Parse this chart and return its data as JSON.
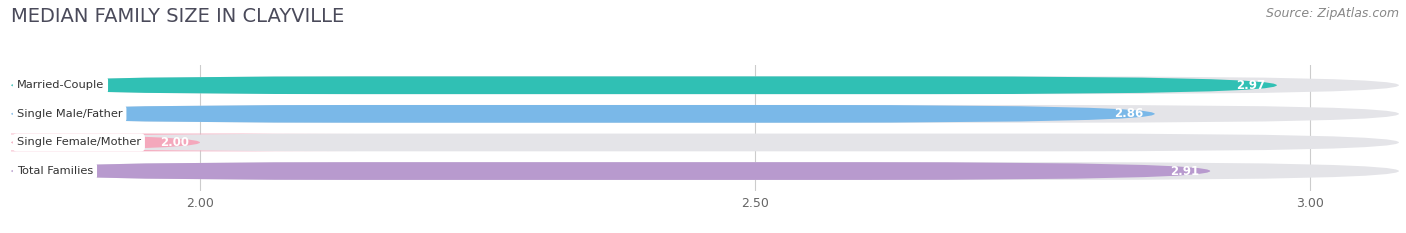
{
  "title": "MEDIAN FAMILY SIZE IN CLAYVILLE",
  "source": "Source: ZipAtlas.com",
  "categories": [
    "Married-Couple",
    "Single Male/Father",
    "Single Female/Mother",
    "Total Families"
  ],
  "values": [
    2.97,
    2.86,
    2.0,
    2.91
  ],
  "bar_colors": [
    "#30c0b4",
    "#7ab8e8",
    "#f4a8bc",
    "#b89ace"
  ],
  "xlim_min": 1.83,
  "xlim_max": 3.08,
  "xticks": [
    2.0,
    2.5,
    3.0
  ],
  "background_color": "#ffffff",
  "bar_bg_color": "#e4e4e8",
  "title_fontsize": 14,
  "source_fontsize": 9,
  "bar_height": 0.62,
  "bar_spacing": 1.0,
  "figsize": [
    14.06,
    2.33
  ]
}
